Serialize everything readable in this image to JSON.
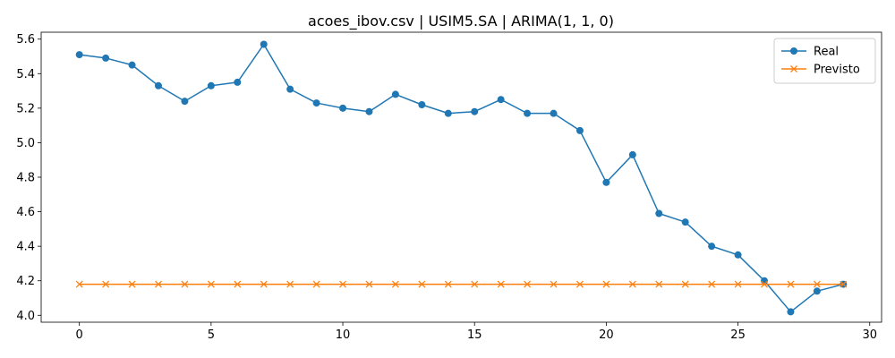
{
  "chart_data": {
    "type": "line",
    "title": "acoes_ibov.csv | USIM5.SA | ARIMA(1, 1, 0)",
    "xlabel": "",
    "ylabel": "",
    "xlim": [
      -1.45,
      30.45
    ],
    "ylim": [
      3.96,
      5.64
    ],
    "xticks": [
      0,
      5,
      10,
      15,
      20,
      25,
      30
    ],
    "yticks": [
      4.0,
      4.2,
      4.4,
      4.6,
      4.8,
      5.0,
      5.2,
      5.4,
      5.6
    ],
    "grid": false,
    "legend": "top-right",
    "x": [
      0,
      1,
      2,
      3,
      4,
      5,
      6,
      7,
      8,
      9,
      10,
      11,
      12,
      13,
      14,
      15,
      16,
      17,
      18,
      19,
      20,
      21,
      22,
      23,
      24,
      25,
      26,
      27,
      28,
      29
    ],
    "series": [
      {
        "name": "Real",
        "color": "#1f77b4",
        "marker": "circle",
        "values": [
          5.51,
          5.49,
          5.45,
          5.33,
          5.24,
          5.33,
          5.35,
          5.57,
          5.31,
          5.23,
          5.2,
          5.18,
          5.28,
          5.22,
          5.17,
          5.18,
          5.25,
          5.17,
          5.17,
          5.07,
          4.77,
          4.93,
          4.59,
          4.54,
          4.4,
          4.35,
          4.2,
          4.02,
          4.14,
          4.18
        ]
      },
      {
        "name": "Previsto",
        "color": "#ff7f0e",
        "marker": "x",
        "values": [
          4.18,
          4.18,
          4.18,
          4.18,
          4.18,
          4.18,
          4.18,
          4.18,
          4.18,
          4.18,
          4.18,
          4.18,
          4.18,
          4.18,
          4.18,
          4.18,
          4.18,
          4.18,
          4.18,
          4.18,
          4.18,
          4.18,
          4.18,
          4.18,
          4.18,
          4.18,
          4.18,
          4.18,
          4.18,
          4.18
        ]
      }
    ]
  }
}
